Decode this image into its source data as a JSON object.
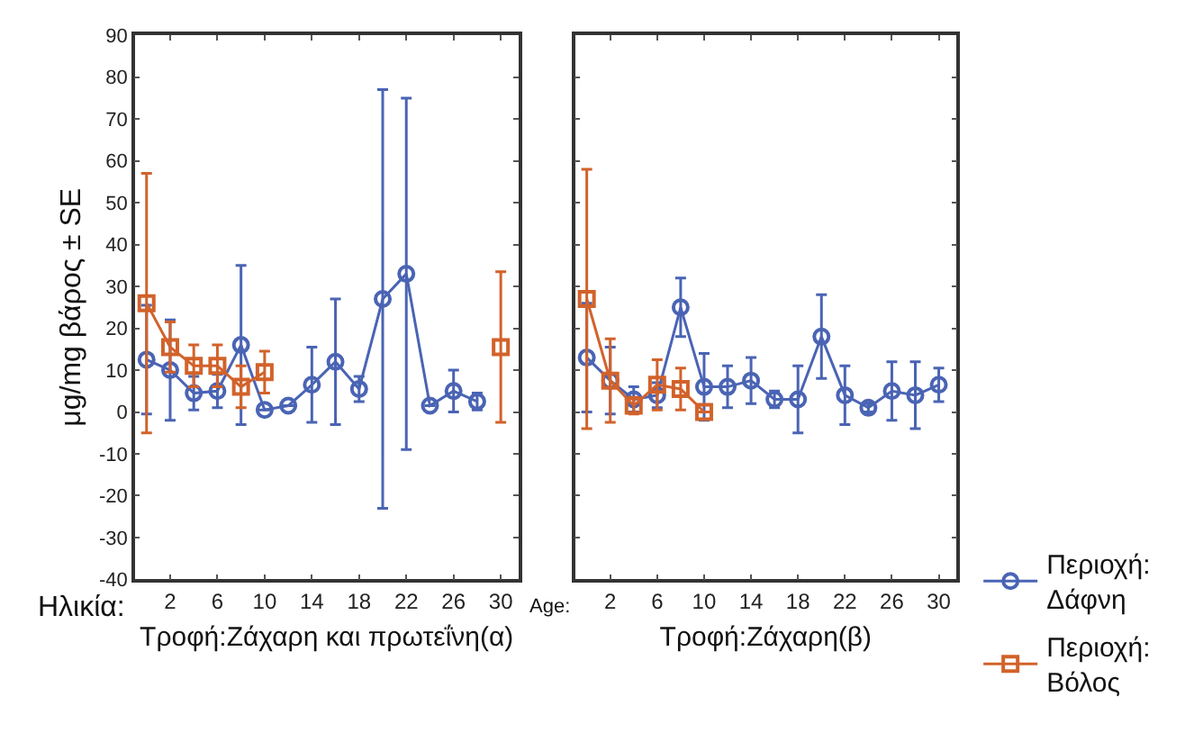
{
  "chart_data": [
    {
      "type": "line",
      "ylabel": "μg/mg βάρος ± SE",
      "xlabel": "Τροφή:Ζάχαρη και πρωτεΐνη(α)",
      "annotations": [
        "Ηλικία:"
      ],
      "xlim": [
        -1,
        31.5
      ],
      "ylim": [
        -40,
        90
      ],
      "xticks": [
        2,
        6,
        10,
        14,
        18,
        22,
        26,
        30
      ],
      "yticks": [
        -40,
        -30,
        -20,
        -10,
        0,
        10,
        20,
        30,
        40,
        50,
        60,
        70,
        80,
        90
      ],
      "line_style": "solid",
      "legend": "right",
      "x": [
        0,
        2,
        4,
        6,
        8,
        10,
        12,
        14,
        16,
        18,
        20,
        22,
        24,
        26,
        28,
        30
      ],
      "series": [
        {
          "name": "Περιοχή: Δάφνη",
          "color": "#4a64b4",
          "marker": "circle",
          "values": [
            12.5,
            10,
            4.5,
            5,
            16,
            0.5,
            1.5,
            6.5,
            12,
            5.5,
            27,
            33,
            1.5,
            5,
            2.5,
            null
          ],
          "errors": [
            13,
            12,
            4,
            4,
            19,
            null,
            null,
            9,
            15,
            3,
            50,
            42,
            null,
            5,
            2,
            null
          ]
        },
        {
          "name": "Περιοχή: Βόλος",
          "color": "#d2622a",
          "marker": "square",
          "values": [
            26,
            15.5,
            11,
            11,
            6,
            9.5,
            null,
            null,
            null,
            null,
            null,
            null,
            null,
            null,
            null,
            15.5
          ],
          "errors": [
            31,
            6,
            5,
            5,
            5,
            5,
            null,
            null,
            null,
            null,
            null,
            null,
            null,
            null,
            null,
            18
          ]
        }
      ]
    },
    {
      "type": "line",
      "xlabel": "Τροφή:Ζάχαρη(β)",
      "annotations": [
        "Age:"
      ],
      "xlim": [
        -1,
        31.5
      ],
      "ylim": [
        -40,
        90
      ],
      "xticks": [
        2,
        6,
        10,
        14,
        18,
        22,
        26,
        30
      ],
      "yticks": [
        -40,
        -30,
        -20,
        -10,
        0,
        10,
        20,
        30,
        40,
        50,
        60,
        70,
        80,
        90
      ],
      "tick_labels": "x",
      "line_style": "solid",
      "legend": "right",
      "x": [
        0,
        2,
        4,
        6,
        8,
        10,
        12,
        14,
        16,
        18,
        20,
        22,
        24,
        26,
        28,
        30
      ],
      "series": [
        {
          "name": "Περιοχή: Δάφνη",
          "color": "#4a64b4",
          "marker": "circle",
          "values": [
            13,
            7.5,
            3,
            4,
            25,
            6,
            6,
            7.5,
            3,
            3,
            18,
            4,
            1,
            5,
            4,
            6.5
          ],
          "errors": [
            13,
            8,
            3,
            3,
            7,
            8,
            5,
            5.5,
            2,
            8,
            10,
            7,
            1,
            7,
            8,
            4
          ]
        },
        {
          "name": "Περιοχή: Βόλος",
          "color": "#d2622a",
          "marker": "square",
          "values": [
            27,
            7.5,
            1.5,
            6.5,
            5.5,
            0,
            null,
            null,
            null,
            null,
            null,
            null,
            null,
            null,
            null,
            null
          ],
          "errors": [
            31,
            10,
            2,
            6,
            5,
            null,
            null,
            null,
            null,
            null,
            null,
            null,
            null,
            null,
            null,
            null
          ]
        }
      ]
    }
  ]
}
